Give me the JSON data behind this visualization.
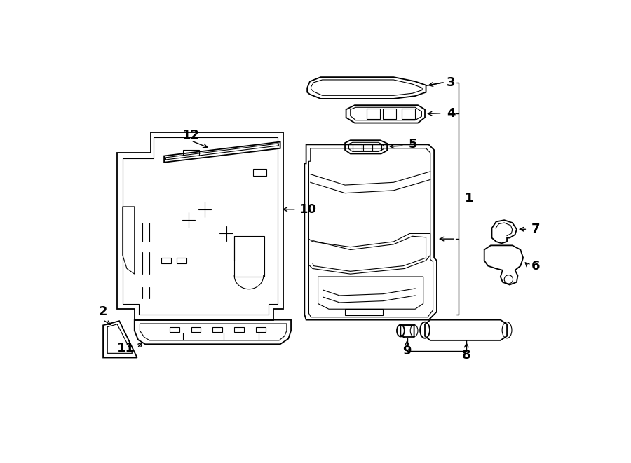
{
  "bg_color": "#ffffff",
  "line_color": "#000000",
  "lw": 1.3,
  "thin_lw": 0.8,
  "label_fs": 13
}
